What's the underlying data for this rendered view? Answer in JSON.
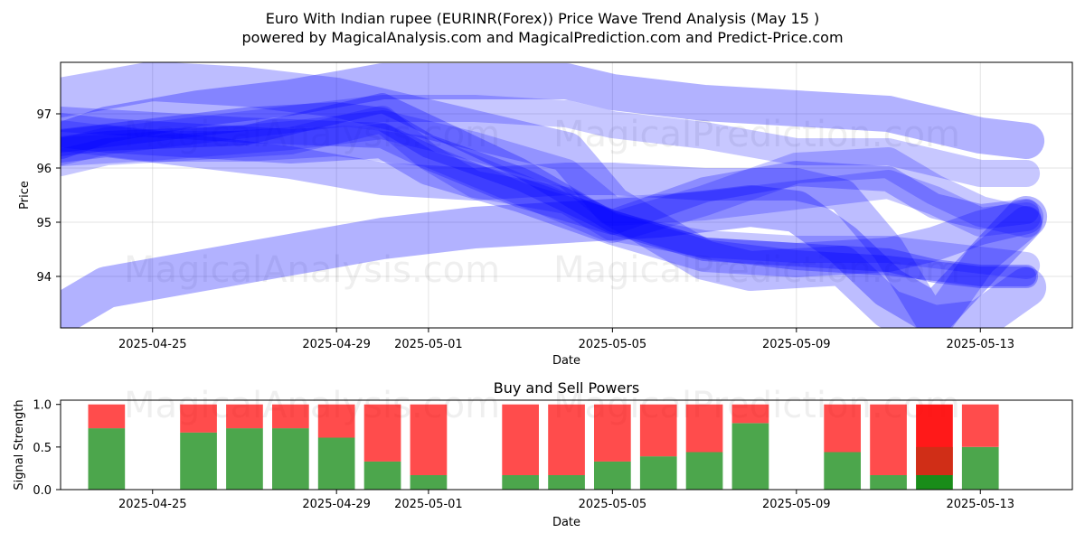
{
  "title_line1": "Euro With Indian rupee (EURINR(Forex)) Price Wave Trend Analysis (May 15 )",
  "title_line2": "powered by MagicalAnalysis.com and MagicalPrediction.com and Predict-Price.com",
  "watermarks": [
    "MagicalAnalysis.com",
    "MagicalPrediction.com"
  ],
  "colors": {
    "wave": "#0000ff",
    "buy": "#008000",
    "sell": "#ff0000",
    "grid": "#b0b0b0"
  },
  "chart_data": [
    {
      "type": "line",
      "xlabel": "Date",
      "ylabel": "Price",
      "x_range": [
        "2025-04-23",
        "2025-05-15"
      ],
      "ylim": [
        93.05,
        97.95
      ],
      "x_ticks": [
        "2025-04-25",
        "2025-04-29",
        "2025-05-01",
        "2025-05-05",
        "2025-05-09",
        "2025-05-13"
      ],
      "y_ticks": [
        94,
        95,
        96,
        97
      ],
      "grid": true,
      "series": [
        {
          "x": [
            "2025-04-23",
            "2025-04-24",
            "2025-04-26",
            "2025-04-28",
            "2025-04-30",
            "2025-05-01",
            "2025-05-02",
            "2025-05-04",
            "2025-05-05",
            "2025-05-07",
            "2025-05-09",
            "2025-05-11",
            "2025-05-13",
            "2025-05-14"
          ],
          "values": [
            96.1,
            96.3,
            96.4,
            96.5,
            96.9,
            96.2,
            95.7,
            95.4,
            94.9,
            94.6,
            94.5,
            94.5,
            94.3,
            94.2
          ]
        },
        {
          "x": [
            "2025-04-23",
            "2025-04-24",
            "2025-04-26",
            "2025-04-28",
            "2025-04-30",
            "2025-05-01",
            "2025-05-03",
            "2025-05-05",
            "2025-05-07",
            "2025-05-09",
            "2025-05-11",
            "2025-05-12",
            "2025-05-13",
            "2025-05-14"
          ],
          "values": [
            96.7,
            96.6,
            96.5,
            96.4,
            96.5,
            96.0,
            95.5,
            94.9,
            94.4,
            94.3,
            94.4,
            94.6,
            94.9,
            95.1
          ]
        },
        {
          "x": [
            "2025-04-23",
            "2025-04-25",
            "2025-04-27",
            "2025-04-29",
            "2025-04-30",
            "2025-05-01",
            "2025-05-03",
            "2025-05-05",
            "2025-05-07",
            "2025-05-09",
            "2025-05-11",
            "2025-05-12",
            "2025-05-13",
            "2025-05-14"
          ],
          "values": [
            96.5,
            96.7,
            96.9,
            97.0,
            96.9,
            96.4,
            95.8,
            95.0,
            94.5,
            94.4,
            94.3,
            94.1,
            94.0,
            94.0
          ]
        },
        {
          "x": [
            "2025-04-23",
            "2025-04-25",
            "2025-04-27",
            "2025-04-29",
            "2025-05-01",
            "2025-05-03",
            "2025-05-05",
            "2025-05-07",
            "2025-05-09",
            "2025-05-11",
            "2025-05-12",
            "2025-05-13",
            "2025-05-14"
          ],
          "values": [
            96.6,
            96.4,
            96.4,
            96.5,
            96.3,
            95.6,
            94.9,
            95.4,
            96.0,
            96.1,
            95.6,
            95.2,
            95.0
          ]
        },
        {
          "x": [
            "2025-04-23",
            "2025-04-25",
            "2025-04-27",
            "2025-04-30",
            "2025-05-01",
            "2025-05-03",
            "2025-05-05",
            "2025-05-07",
            "2025-05-09",
            "2025-05-11",
            "2025-05-12",
            "2025-05-13",
            "2025-05-14"
          ],
          "values": [
            96.9,
            96.8,
            96.7,
            96.6,
            96.2,
            95.5,
            95.0,
            95.6,
            95.9,
            95.8,
            95.3,
            95.1,
            95.2
          ]
        },
        {
          "x": [
            "2025-04-23",
            "2025-04-24",
            "2025-04-27",
            "2025-04-29",
            "2025-04-30",
            "2025-05-01",
            "2025-05-03",
            "2025-05-05",
            "2025-05-07",
            "2025-05-09",
            "2025-05-11",
            "2025-05-12",
            "2025-05-13",
            "2025-05-14"
          ],
          "values": [
            96.4,
            96.5,
            96.6,
            97.0,
            97.2,
            96.8,
            96.0,
            95.0,
            94.5,
            94.3,
            94.2,
            94.1,
            94.0,
            94.0
          ]
        },
        {
          "x": [
            "2025-04-23",
            "2025-04-25",
            "2025-04-28",
            "2025-04-30",
            "2025-05-02",
            "2025-05-04",
            "2025-05-05",
            "2025-05-07",
            "2025-05-09",
            "2025-05-11",
            "2025-05-12",
            "2025-05-13",
            "2025-05-14"
          ],
          "values": [
            96.3,
            96.4,
            96.6,
            96.8,
            96.4,
            95.9,
            95.2,
            95.3,
            95.5,
            95.7,
            95.4,
            95.0,
            95.1
          ]
        },
        {
          "x": [
            "2025-04-23",
            "2025-04-25",
            "2025-04-27",
            "2025-04-29",
            "2025-04-30",
            "2025-05-01",
            "2025-05-02",
            "2025-05-04",
            "2025-05-05",
            "2025-05-07",
            "2025-05-08",
            "2025-05-10",
            "2025-05-11",
            "2025-05-12",
            "2025-05-13",
            "2025-05-14"
          ],
          "values": [
            97.3,
            97.6,
            97.5,
            97.3,
            97.1,
            96.9,
            96.7,
            96.3,
            95.3,
            94.3,
            94.1,
            94.2,
            93.4,
            93.1,
            93.2,
            93.8
          ]
        },
        {
          "x": [
            "2025-04-23",
            "2025-04-24",
            "2025-04-26",
            "2025-04-28",
            "2025-04-30",
            "2025-05-02",
            "2025-05-04",
            "2025-05-05",
            "2025-05-07",
            "2025-05-09",
            "2025-05-11",
            "2025-05-12",
            "2025-05-13",
            "2025-05-14"
          ],
          "values": [
            96.5,
            96.8,
            97.1,
            97.3,
            97.6,
            97.6,
            97.6,
            97.4,
            97.2,
            97.1,
            97.0,
            96.8,
            96.6,
            96.5
          ]
        },
        {
          "x": [
            "2025-04-23",
            "2025-04-24",
            "2025-04-26",
            "2025-04-28",
            "2025-04-30",
            "2025-05-02",
            "2025-05-04",
            "2025-05-05",
            "2025-05-07",
            "2025-05-09",
            "2025-05-11",
            "2025-05-12",
            "2025-05-13",
            "2025-05-14"
          ],
          "values": [
            96.3,
            96.5,
            96.7,
            96.9,
            97.1,
            97.1,
            97.0,
            96.8,
            96.6,
            96.3,
            96.3,
            96.1,
            95.9,
            95.9
          ]
        },
        {
          "x": [
            "2025-04-23",
            "2025-04-24",
            "2025-04-26",
            "2025-04-28",
            "2025-04-30",
            "2025-05-02",
            "2025-05-04",
            "2025-05-05",
            "2025-05-07",
            "2025-05-09",
            "2025-05-10",
            "2025-05-11",
            "2025-05-12",
            "2025-05-13",
            "2025-05-14"
          ],
          "values": [
            96.4,
            96.5,
            96.3,
            96.1,
            95.8,
            95.7,
            95.8,
            95.8,
            95.7,
            95.7,
            95.5,
            94.5,
            93.1,
            94.3,
            95.0
          ]
        },
        {
          "x": [
            "2025-04-23",
            "2025-04-24",
            "2025-04-26",
            "2025-04-28",
            "2025-04-30",
            "2025-05-02",
            "2025-05-04",
            "2025-05-06",
            "2025-05-08",
            "2025-05-09",
            "2025-05-10",
            "2025-05-11",
            "2025-05-12",
            "2025-05-13",
            "2025-05-14"
          ],
          "values": [
            93.3,
            93.8,
            94.1,
            94.4,
            94.7,
            94.9,
            95.0,
            95.1,
            95.3,
            95.2,
            94.6,
            93.8,
            93.3,
            94.2,
            95.1
          ]
        }
      ]
    },
    {
      "type": "bar",
      "title": "Buy and Sell Powers",
      "xlabel": "Date",
      "ylabel": "Signal Strength",
      "ylim": [
        0,
        1.05
      ],
      "x_range": [
        "2025-04-23",
        "2025-05-15"
      ],
      "x_ticks": [
        "2025-04-25",
        "2025-04-29",
        "2025-05-01",
        "2025-05-05",
        "2025-05-09",
        "2025-05-13"
      ],
      "y_ticks": [
        "0.0",
        "0.5",
        "1.0"
      ],
      "series": [
        {
          "name": "buy",
          "x": [
            "2025-04-24",
            "2025-04-26",
            "2025-04-27",
            "2025-04-28",
            "2025-04-29",
            "2025-04-30",
            "2025-05-01",
            "2025-05-03",
            "2025-05-04",
            "2025-05-05",
            "2025-05-06",
            "2025-05-07",
            "2025-05-08",
            "2025-05-10",
            "2025-05-11",
            "2025-05-12",
            "2025-05-13"
          ],
          "values": [
            0.72,
            0.67,
            0.72,
            0.72,
            0.61,
            0.33,
            0.17,
            0.17,
            0.17,
            0.33,
            0.39,
            0.44,
            0.78,
            0.44,
            0.17,
            0.17,
            0.5
          ]
        },
        {
          "name": "sell",
          "x": [
            "2025-04-24",
            "2025-04-26",
            "2025-04-27",
            "2025-04-28",
            "2025-04-29",
            "2025-04-30",
            "2025-05-01",
            "2025-05-03",
            "2025-05-04",
            "2025-05-05",
            "2025-05-06",
            "2025-05-07",
            "2025-05-08",
            "2025-05-10",
            "2025-05-11",
            "2025-05-12",
            "2025-05-13"
          ],
          "values": [
            0.28,
            0.33,
            0.28,
            0.28,
            0.39,
            0.67,
            0.83,
            0.83,
            0.83,
            0.67,
            0.61,
            0.56,
            0.22,
            0.56,
            0.83,
            0.83,
            0.5
          ]
        }
      ],
      "highlighted_date": "2025-05-12"
    }
  ]
}
